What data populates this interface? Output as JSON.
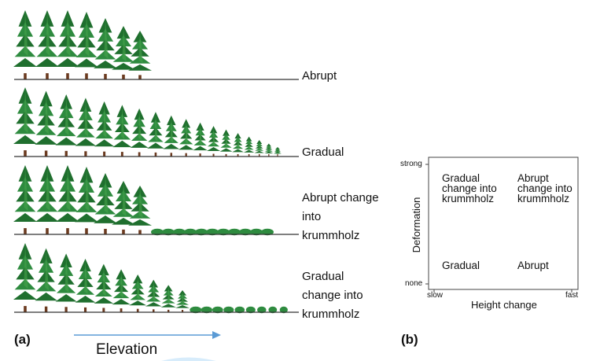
{
  "panel_a": {
    "label": "(a)",
    "rows": [
      {
        "name": "Abrupt",
        "lines": [
          "Abrupt"
        ]
      },
      {
        "name": "Gradual",
        "lines": [
          "Gradual"
        ]
      },
      {
        "name": "Abrupt change into krummholz",
        "lines": [
          "Abrupt change",
          "into",
          "krummholz"
        ]
      },
      {
        "name": "Gradual change into krummholz",
        "lines": [
          "Gradual",
          "change into",
          "krummholz"
        ]
      }
    ],
    "axis_label": "Elevation"
  },
  "panel_b": {
    "label": "(b)",
    "y_axis": {
      "title": "Deformation",
      "tick_top": "strong",
      "tick_bottom": "none"
    },
    "x_axis": {
      "title": "Height change",
      "tick_left": "slow",
      "tick_right": "fast"
    },
    "quadrants": {
      "top_left": [
        "Gradual",
        "change into",
        "krummholz"
      ],
      "top_right": [
        "Abrupt",
        "change into",
        "krummholz"
      ],
      "bottom_left": [
        "Gradual"
      ],
      "bottom_right": [
        "Abrupt"
      ]
    }
  },
  "colors": {
    "tree_dark": "#1f6f2e",
    "tree_mid": "#2e8b3f",
    "tree_light": "#4aa84f",
    "trunk": "#6b3a1f",
    "arrow": "#5b9bd5",
    "ground": "#333333"
  }
}
